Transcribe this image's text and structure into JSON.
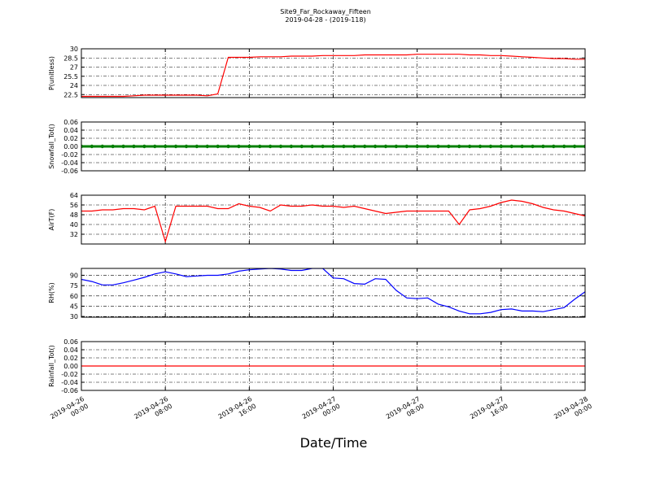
{
  "chart_data": [
    {
      "type": "line",
      "title": "Site9_Far_Rockaway_Fifteen",
      "subtitle": "2019-04-28 - (2019-118)",
      "ylabel": "P(unitless)",
      "xlabel": "Date/Time",
      "xlim": [
        "2019-04-26 00:00",
        "2019-04-28 00:00"
      ],
      "xticks": [
        "2019-04-26 00:00",
        "2019-04-26 08:00",
        "2019-04-26 16:00",
        "2019-04-27 00:00",
        "2019-04-27 08:00",
        "2019-04-27 16:00",
        "2019-04-28 00:00"
      ],
      "ylim": [
        22,
        30
      ],
      "yticks": [
        22.5,
        24.0,
        25.5,
        27.0,
        28.5,
        30.0
      ],
      "grid": true,
      "series": [
        {
          "color": "#ff0000",
          "values": [
            22.2,
            22.2,
            22.2,
            22.2,
            22.2,
            22.3,
            22.4,
            22.4,
            22.4,
            22.4,
            22.4,
            22.4,
            22.3,
            22.6,
            28.6,
            28.6,
            28.6,
            28.7,
            28.7,
            28.7,
            28.8,
            28.8,
            28.8,
            28.9,
            28.9,
            28.9,
            28.9,
            29.0,
            29.0,
            29.0,
            29.0,
            29.0,
            29.1,
            29.1,
            29.1,
            29.1,
            29.1,
            29.0,
            29.0,
            28.9,
            28.9,
            28.8,
            28.7,
            28.6,
            28.5,
            28.4,
            28.4,
            28.3,
            28.3
          ]
        }
      ]
    },
    {
      "type": "line",
      "ylabel": "Snowfall_Tot()",
      "xlim": [
        "2019-04-26 00:00",
        "2019-04-28 00:00"
      ],
      "xticks": [
        "2019-04-26 00:00",
        "2019-04-26 08:00",
        "2019-04-26 16:00",
        "2019-04-27 00:00",
        "2019-04-27 08:00",
        "2019-04-27 16:00",
        "2019-04-28 00:00"
      ],
      "ylim": [
        -0.06,
        0.06
      ],
      "yticks": [
        -0.06,
        -0.04,
        -0.02,
        {
          "value": 0,
          "label": "0.00"
        },
        0.02,
        0.04,
        0.06
      ],
      "grid": true,
      "markers": true,
      "series": [
        {
          "color": "#007f00",
          "values": [
            0,
            0,
            0,
            0,
            0,
            0,
            0,
            0,
            0,
            0,
            0,
            0,
            0,
            0,
            0,
            0,
            0,
            0,
            0,
            0,
            0,
            0,
            0,
            0,
            0,
            0,
            0,
            0,
            0,
            0,
            0,
            0,
            0,
            0,
            0,
            0,
            0,
            0,
            0,
            0,
            0,
            0,
            0,
            0,
            0,
            0,
            0,
            0,
            0
          ]
        }
      ]
    },
    {
      "type": "line",
      "ylabel": "AirT(F)",
      "xlim": [
        "2019-04-26 00:00",
        "2019-04-28 00:00"
      ],
      "xticks": [
        "2019-04-26 00:00",
        "2019-04-26 08:00",
        "2019-04-26 16:00",
        "2019-04-27 00:00",
        "2019-04-27 08:00",
        "2019-04-27 16:00",
        "2019-04-28 00:00"
      ],
      "ylim": [
        24,
        64
      ],
      "yticks": [
        32,
        40,
        48,
        56,
        64
      ],
      "grid": true,
      "series": [
        {
          "color": "#ff0000",
          "values": [
            51,
            51,
            52,
            52,
            53,
            53,
            52,
            55,
            26,
            55,
            55,
            55,
            55,
            53,
            53,
            57,
            55,
            54,
            51,
            56,
            55,
            55,
            56,
            55,
            55,
            54,
            55,
            53,
            51,
            49,
            50,
            51,
            51,
            51,
            51,
            51,
            40,
            52,
            53,
            55,
            58,
            60,
            59,
            57,
            54,
            52,
            51,
            49,
            47
          ]
        }
      ]
    },
    {
      "type": "line",
      "ylabel": "RH(%)",
      "xlim": [
        "2019-04-26 00:00",
        "2019-04-28 00:00"
      ],
      "xticks": [
        "2019-04-26 00:00",
        "2019-04-26 08:00",
        "2019-04-26 16:00",
        "2019-04-27 00:00",
        "2019-04-27 08:00",
        "2019-04-27 16:00",
        "2019-04-28 00:00"
      ],
      "ylim": [
        29,
        100
      ],
      "yticks": [
        30,
        45,
        60,
        75,
        90
      ],
      "grid": true,
      "series": [
        {
          "color": "#0000ff",
          "values": [
            84,
            81,
            76,
            76,
            79,
            83,
            87,
            92,
            95,
            92,
            88,
            89,
            90,
            90,
            92,
            96,
            98,
            99,
            100,
            99,
            97,
            97,
            100,
            100,
            86,
            85,
            78,
            77,
            85,
            84,
            68,
            57,
            56,
            57,
            48,
            44,
            38,
            34,
            34,
            36,
            40,
            41,
            38,
            38,
            37,
            40,
            43,
            55,
            66
          ]
        }
      ]
    },
    {
      "type": "line",
      "ylabel": "Rainfall_Tot()",
      "xlim": [
        "2019-04-26 00:00",
        "2019-04-28 00:00"
      ],
      "xticks": [
        "2019-04-26 00:00",
        "2019-04-26 08:00",
        "2019-04-26 16:00",
        "2019-04-27 00:00",
        "2019-04-27 08:00",
        "2019-04-27 16:00",
        "2019-04-28 00:00"
      ],
      "ylim": [
        -0.06,
        0.06
      ],
      "yticks": [
        -0.06,
        -0.04,
        -0.02,
        {
          "value": 0,
          "label": "0.00"
        },
        0.02,
        0.04,
        0.06
      ],
      "grid": true,
      "series": [
        {
          "color": "#ff0000",
          "values": [
            0,
            0,
            0,
            0,
            0,
            0,
            0,
            0,
            0,
            0,
            0,
            0,
            0,
            0,
            0,
            0,
            0,
            0,
            0,
            0,
            0,
            0,
            0,
            0,
            0,
            0,
            0,
            0,
            0,
            0,
            0,
            0,
            0,
            0,
            0,
            0,
            0,
            0,
            0,
            0,
            0,
            0,
            0,
            0,
            0,
            0,
            0,
            0,
            0
          ]
        }
      ]
    }
  ]
}
